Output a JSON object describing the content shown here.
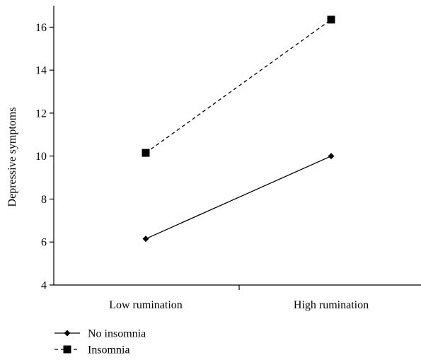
{
  "chart_data": {
    "type": "line",
    "title": "",
    "xlabel": "",
    "ylabel": "Depressive symptoms",
    "categories": [
      "Low rumination",
      "High rumination"
    ],
    "ylim": [
      4,
      17
    ],
    "yticks": [
      4,
      6,
      8,
      10,
      12,
      14,
      16
    ],
    "grid": false,
    "legend_position": "bottom-left",
    "series": [
      {
        "name": "No insomnia",
        "values": [
          6.15,
          10.0
        ],
        "marker": "diamond",
        "line_style": "solid",
        "color": "#000000"
      },
      {
        "name": "Insomnia",
        "values": [
          10.15,
          16.35
        ],
        "marker": "square",
        "line_style": "dashed",
        "color": "#000000"
      }
    ]
  }
}
